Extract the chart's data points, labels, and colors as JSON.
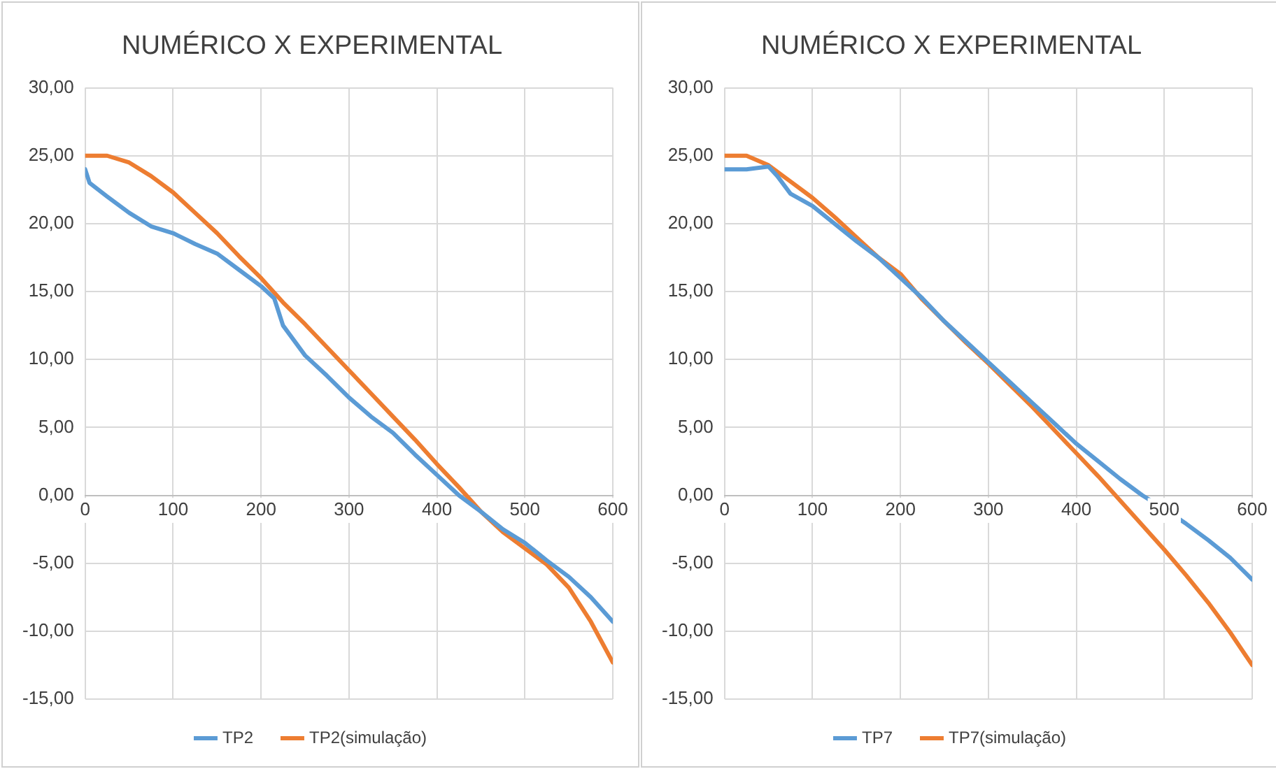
{
  "chart_data": [
    {
      "type": "line",
      "title": "NUMÉRICO X EXPERIMENTAL",
      "legend": "bottom",
      "grid": true,
      "marker": "none",
      "xlim": [
        0,
        600
      ],
      "xticks": [
        0,
        100,
        200,
        300,
        400,
        500,
        600
      ],
      "ylim": [
        -15,
        30
      ],
      "yticks": [
        {
          "value": -15,
          "label": "-15,00"
        },
        {
          "value": -10,
          "label": "-10,00"
        },
        {
          "value": -5,
          "label": "-5,00"
        },
        {
          "value": 0,
          "label": "0,00"
        },
        {
          "value": 5,
          "label": "5,00"
        },
        {
          "value": 10,
          "label": "10,00"
        },
        {
          "value": 15,
          "label": "15,00"
        },
        {
          "value": 20,
          "label": "20,00"
        },
        {
          "value": 25,
          "label": "25,00"
        },
        {
          "value": 30,
          "label": "30,00"
        }
      ],
      "series": [
        {
          "name": "TP2",
          "color": "#5b9bd5",
          "x": [
            0,
            5,
            25,
            50,
            75,
            100,
            125,
            150,
            175,
            200,
            215,
            225,
            250,
            275,
            300,
            325,
            350,
            375,
            400,
            425,
            450,
            475,
            500,
            525,
            550,
            575,
            600
          ],
          "values": [
            24,
            23,
            22,
            20.8,
            19.8,
            19.3,
            18.5,
            17.8,
            16.6,
            15.4,
            14.5,
            12.5,
            10.3,
            8.8,
            7.2,
            5.8,
            4.6,
            3,
            1.5,
            0,
            -1.2,
            -2.5,
            -3.5,
            -4.8,
            -6,
            -7.5,
            -9.3
          ]
        },
        {
          "name": "TP2(simulação)",
          "color": "#ed7d31",
          "x": [
            0,
            25,
            50,
            75,
            100,
            125,
            150,
            175,
            200,
            225,
            250,
            275,
            300,
            325,
            350,
            375,
            400,
            425,
            450,
            475,
            500,
            525,
            550,
            575,
            600
          ],
          "values": [
            25,
            25,
            24.5,
            23.5,
            22.3,
            20.8,
            19.3,
            17.6,
            16,
            14.2,
            12.6,
            10.9,
            9.2,
            7.5,
            5.8,
            4.1,
            2.3,
            0.6,
            -1.2,
            -2.7,
            -3.9,
            -5.1,
            -6.8,
            -9.3,
            -12.3
          ]
        }
      ]
    },
    {
      "type": "line",
      "title": "NUMÉRICO X EXPERIMENTAL",
      "legend": "bottom",
      "grid": true,
      "marker": "none",
      "xlim": [
        0,
        600
      ],
      "xticks": [
        0,
        100,
        200,
        300,
        400,
        500,
        600
      ],
      "ylim": [
        -15,
        30
      ],
      "yticks": [
        {
          "value": -15,
          "label": "-15,00"
        },
        {
          "value": -10,
          "label": "-10,00"
        },
        {
          "value": -5,
          "label": "-5,00"
        },
        {
          "value": 0,
          "label": "0,00"
        },
        {
          "value": 5,
          "label": "5,00"
        },
        {
          "value": 10,
          "label": "10,00"
        },
        {
          "value": 15,
          "label": "15,00"
        },
        {
          "value": 20,
          "label": "20,00"
        },
        {
          "value": 25,
          "label": "25,00"
        },
        {
          "value": 30,
          "label": "30,00"
        }
      ],
      "series": [
        {
          "name": "TP7",
          "color": "#5b9bd5",
          "x": [
            0,
            25,
            50,
            60,
            75,
            100,
            125,
            150,
            175,
            200,
            225,
            250,
            275,
            300,
            325,
            350,
            375,
            400,
            425,
            450,
            475,
            500,
            525,
            550,
            575,
            600
          ],
          "values": [
            24,
            24,
            24.2,
            23.5,
            22.2,
            21.3,
            20,
            18.7,
            17.5,
            16,
            14.5,
            12.8,
            11.3,
            9.8,
            8.3,
            6.8,
            5.3,
            3.8,
            2.5,
            1.2,
            0,
            -1,
            -2.1,
            -3.3,
            -4.6,
            -6.2
          ]
        },
        {
          "name": "TP7(simulação)",
          "color": "#ed7d31",
          "x": [
            0,
            25,
            50,
            75,
            100,
            125,
            150,
            175,
            200,
            225,
            250,
            275,
            300,
            325,
            350,
            375,
            400,
            425,
            450,
            475,
            500,
            525,
            550,
            575,
            600
          ],
          "values": [
            25,
            25,
            24.3,
            23.1,
            21.9,
            20.5,
            19,
            17.5,
            16.3,
            14.4,
            12.8,
            11.2,
            9.7,
            8.1,
            6.5,
            4.8,
            3.1,
            1.4,
            -0.4,
            -2.2,
            -4,
            -5.9,
            -7.9,
            -10.1,
            -12.5
          ]
        }
      ]
    }
  ]
}
